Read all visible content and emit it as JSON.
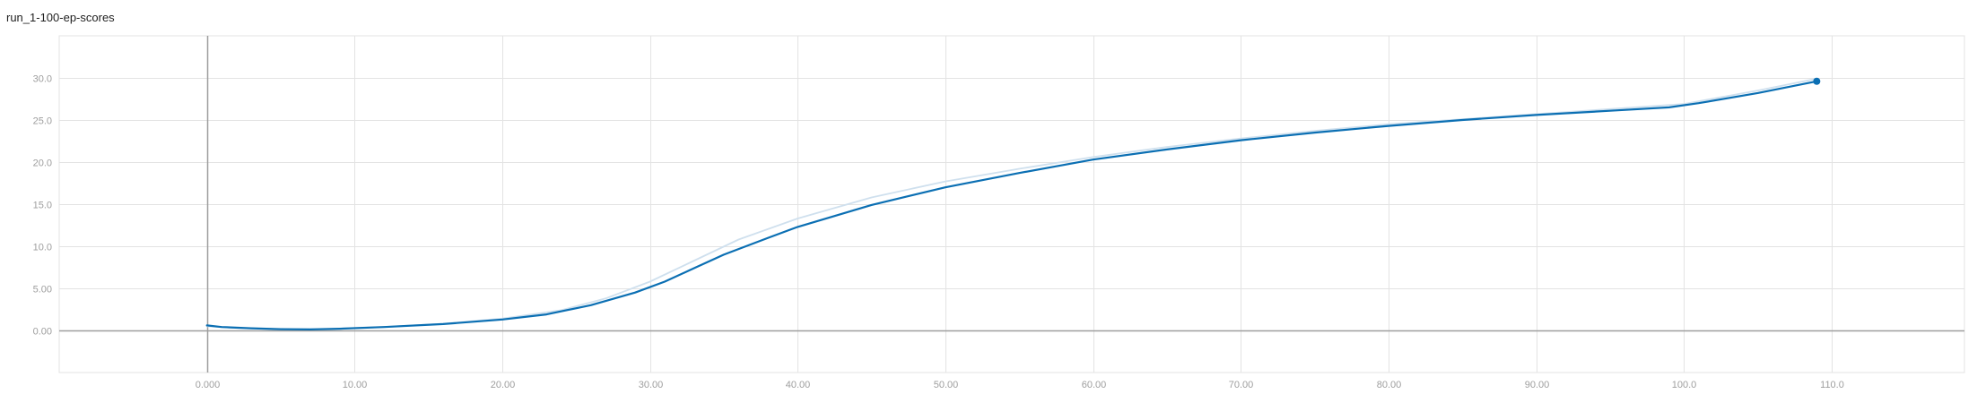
{
  "chart_data": {
    "type": "line",
    "title": "run_1-100-ep-scores",
    "xlabel": "",
    "ylabel": "",
    "xlim": [
      -10,
      119
    ],
    "ylim": [
      -5,
      35
    ],
    "x_ticks": [
      0,
      10,
      20,
      30,
      40,
      50,
      60,
      70,
      80,
      90,
      100,
      110
    ],
    "x_tick_labels": [
      "0.000",
      "10.00",
      "20.00",
      "30.00",
      "40.00",
      "50.00",
      "60.00",
      "70.00",
      "80.00",
      "90.00",
      "100.0",
      "110.0"
    ],
    "y_ticks": [
      0,
      5,
      10,
      15,
      20,
      25,
      30
    ],
    "y_tick_labels": [
      "0.00",
      "5.00",
      "10.0",
      "15.0",
      "20.0",
      "25.0",
      "30.0"
    ],
    "grid": true,
    "series": [
      {
        "role": "raw",
        "color": "#cfe0ee",
        "points": [
          [
            0,
            0.5
          ],
          [
            2,
            0.3
          ],
          [
            5,
            0.15
          ],
          [
            8,
            0.15
          ],
          [
            12,
            0.4
          ],
          [
            16,
            0.8
          ],
          [
            20,
            1.4
          ],
          [
            24,
            2.4
          ],
          [
            27,
            3.8
          ],
          [
            30,
            5.8
          ],
          [
            33,
            8.3
          ],
          [
            36,
            10.8
          ],
          [
            40,
            13.3
          ],
          [
            45,
            15.8
          ],
          [
            50,
            17.7
          ],
          [
            55,
            19.2
          ],
          [
            60,
            20.6
          ],
          [
            65,
            21.8
          ],
          [
            70,
            22.8
          ],
          [
            75,
            23.7
          ],
          [
            80,
            24.5
          ],
          [
            85,
            25.1
          ],
          [
            90,
            25.7
          ],
          [
            95,
            26.3
          ],
          [
            100,
            26.9
          ],
          [
            105,
            28.5
          ],
          [
            109,
            29.9
          ]
        ]
      },
      {
        "role": "smoothed",
        "color": "#0b6fb3",
        "points": [
          [
            0,
            0.6
          ],
          [
            1,
            0.4
          ],
          [
            3,
            0.25
          ],
          [
            5,
            0.15
          ],
          [
            7,
            0.12
          ],
          [
            9,
            0.2
          ],
          [
            12,
            0.4
          ],
          [
            16,
            0.75
          ],
          [
            20,
            1.3
          ],
          [
            23,
            1.9
          ],
          [
            26,
            3.0
          ],
          [
            29,
            4.5
          ],
          [
            31,
            5.8
          ],
          [
            33,
            7.4
          ],
          [
            35,
            9.0
          ],
          [
            38,
            11.0
          ],
          [
            40,
            12.3
          ],
          [
            45,
            14.9
          ],
          [
            50,
            17.0
          ],
          [
            55,
            18.7
          ],
          [
            60,
            20.3
          ],
          [
            65,
            21.5
          ],
          [
            70,
            22.6
          ],
          [
            75,
            23.5
          ],
          [
            80,
            24.3
          ],
          [
            85,
            25.0
          ],
          [
            90,
            25.6
          ],
          [
            95,
            26.1
          ],
          [
            99,
            26.5
          ],
          [
            101,
            27.0
          ],
          [
            105,
            28.2
          ],
          [
            109,
            29.6
          ]
        ]
      }
    ],
    "marker": {
      "x": 109,
      "y": 29.6,
      "color": "#0b6fb3"
    }
  }
}
